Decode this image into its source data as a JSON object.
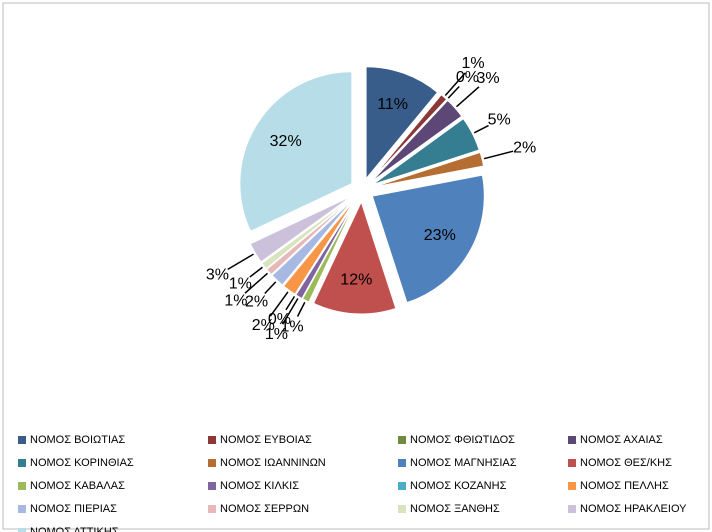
{
  "chart_data": {
    "type": "pie",
    "categories": [
      "ΝΟΜΟΣ ΒΟΙΩΤΙΑΣ",
      "ΝΟΜΟΣ ΕΥΒΟΙΑΣ",
      "ΝΟΜΟΣ ΦΘΙΩΤΙΔΟΣ",
      "ΝΟΜΟΣ ΑΧΑΙΑΣ",
      "ΝΟΜΟΣ ΚΟΡΙΝΘΙΑΣ",
      "ΝΟΜΟΣ ΙΩΑΝΝΙΝΩΝ",
      "ΝΟΜΟΣ ΜΑΓΝΗΣΙΑΣ",
      "ΝΟΜΟΣ ΘΕΣ/ΚΗΣ",
      "ΝΟΜΟΣ ΚΑΒΑΛΑΣ",
      "ΝΟΜΟΣ ΚΙΛΚΙΣ",
      "ΝΟΜΟΣ ΚΟΖΑΝΗΣ",
      "ΝΟΜΟΣ ΠΕΛΛΗΣ",
      "ΝΟΜΟΣ ΠΙΕΡΙΑΣ",
      "ΝΟΜΟΣ ΣΕΡΡΩΝ",
      "ΝΟΜΟΣ ΞΑΝΘΗΣ",
      "ΝΟΜΟΣ ΗΡΑΚΛΕΙΟΥ",
      "ΝΟΜΟΣ ΑΤΤΙΚΗΣ"
    ],
    "values": [
      11,
      1,
      0,
      3,
      5,
      2,
      23,
      12,
      1,
      1,
      0,
      2,
      2,
      1,
      1,
      3,
      32
    ],
    "value_labels": [
      "11%",
      "1%",
      "0%",
      "3%",
      "5%",
      "2%",
      "23%",
      "12%",
      "1%",
      "1%",
      "0%",
      "2%",
      "2%",
      "1%",
      "1%",
      "3%",
      "32%"
    ],
    "colors": [
      "#385d8a",
      "#8c3836",
      "#71893f",
      "#5c4776",
      "#357d91",
      "#b66d31",
      "#4f81bd",
      "#c0504d",
      "#9bbb59",
      "#8064a2",
      "#4bacc6",
      "#f79646",
      "#a7b9e3",
      "#e6b9b8",
      "#d7e4bd",
      "#ccc1da",
      "#b7dee8"
    ],
    "legend": "bottom"
  }
}
